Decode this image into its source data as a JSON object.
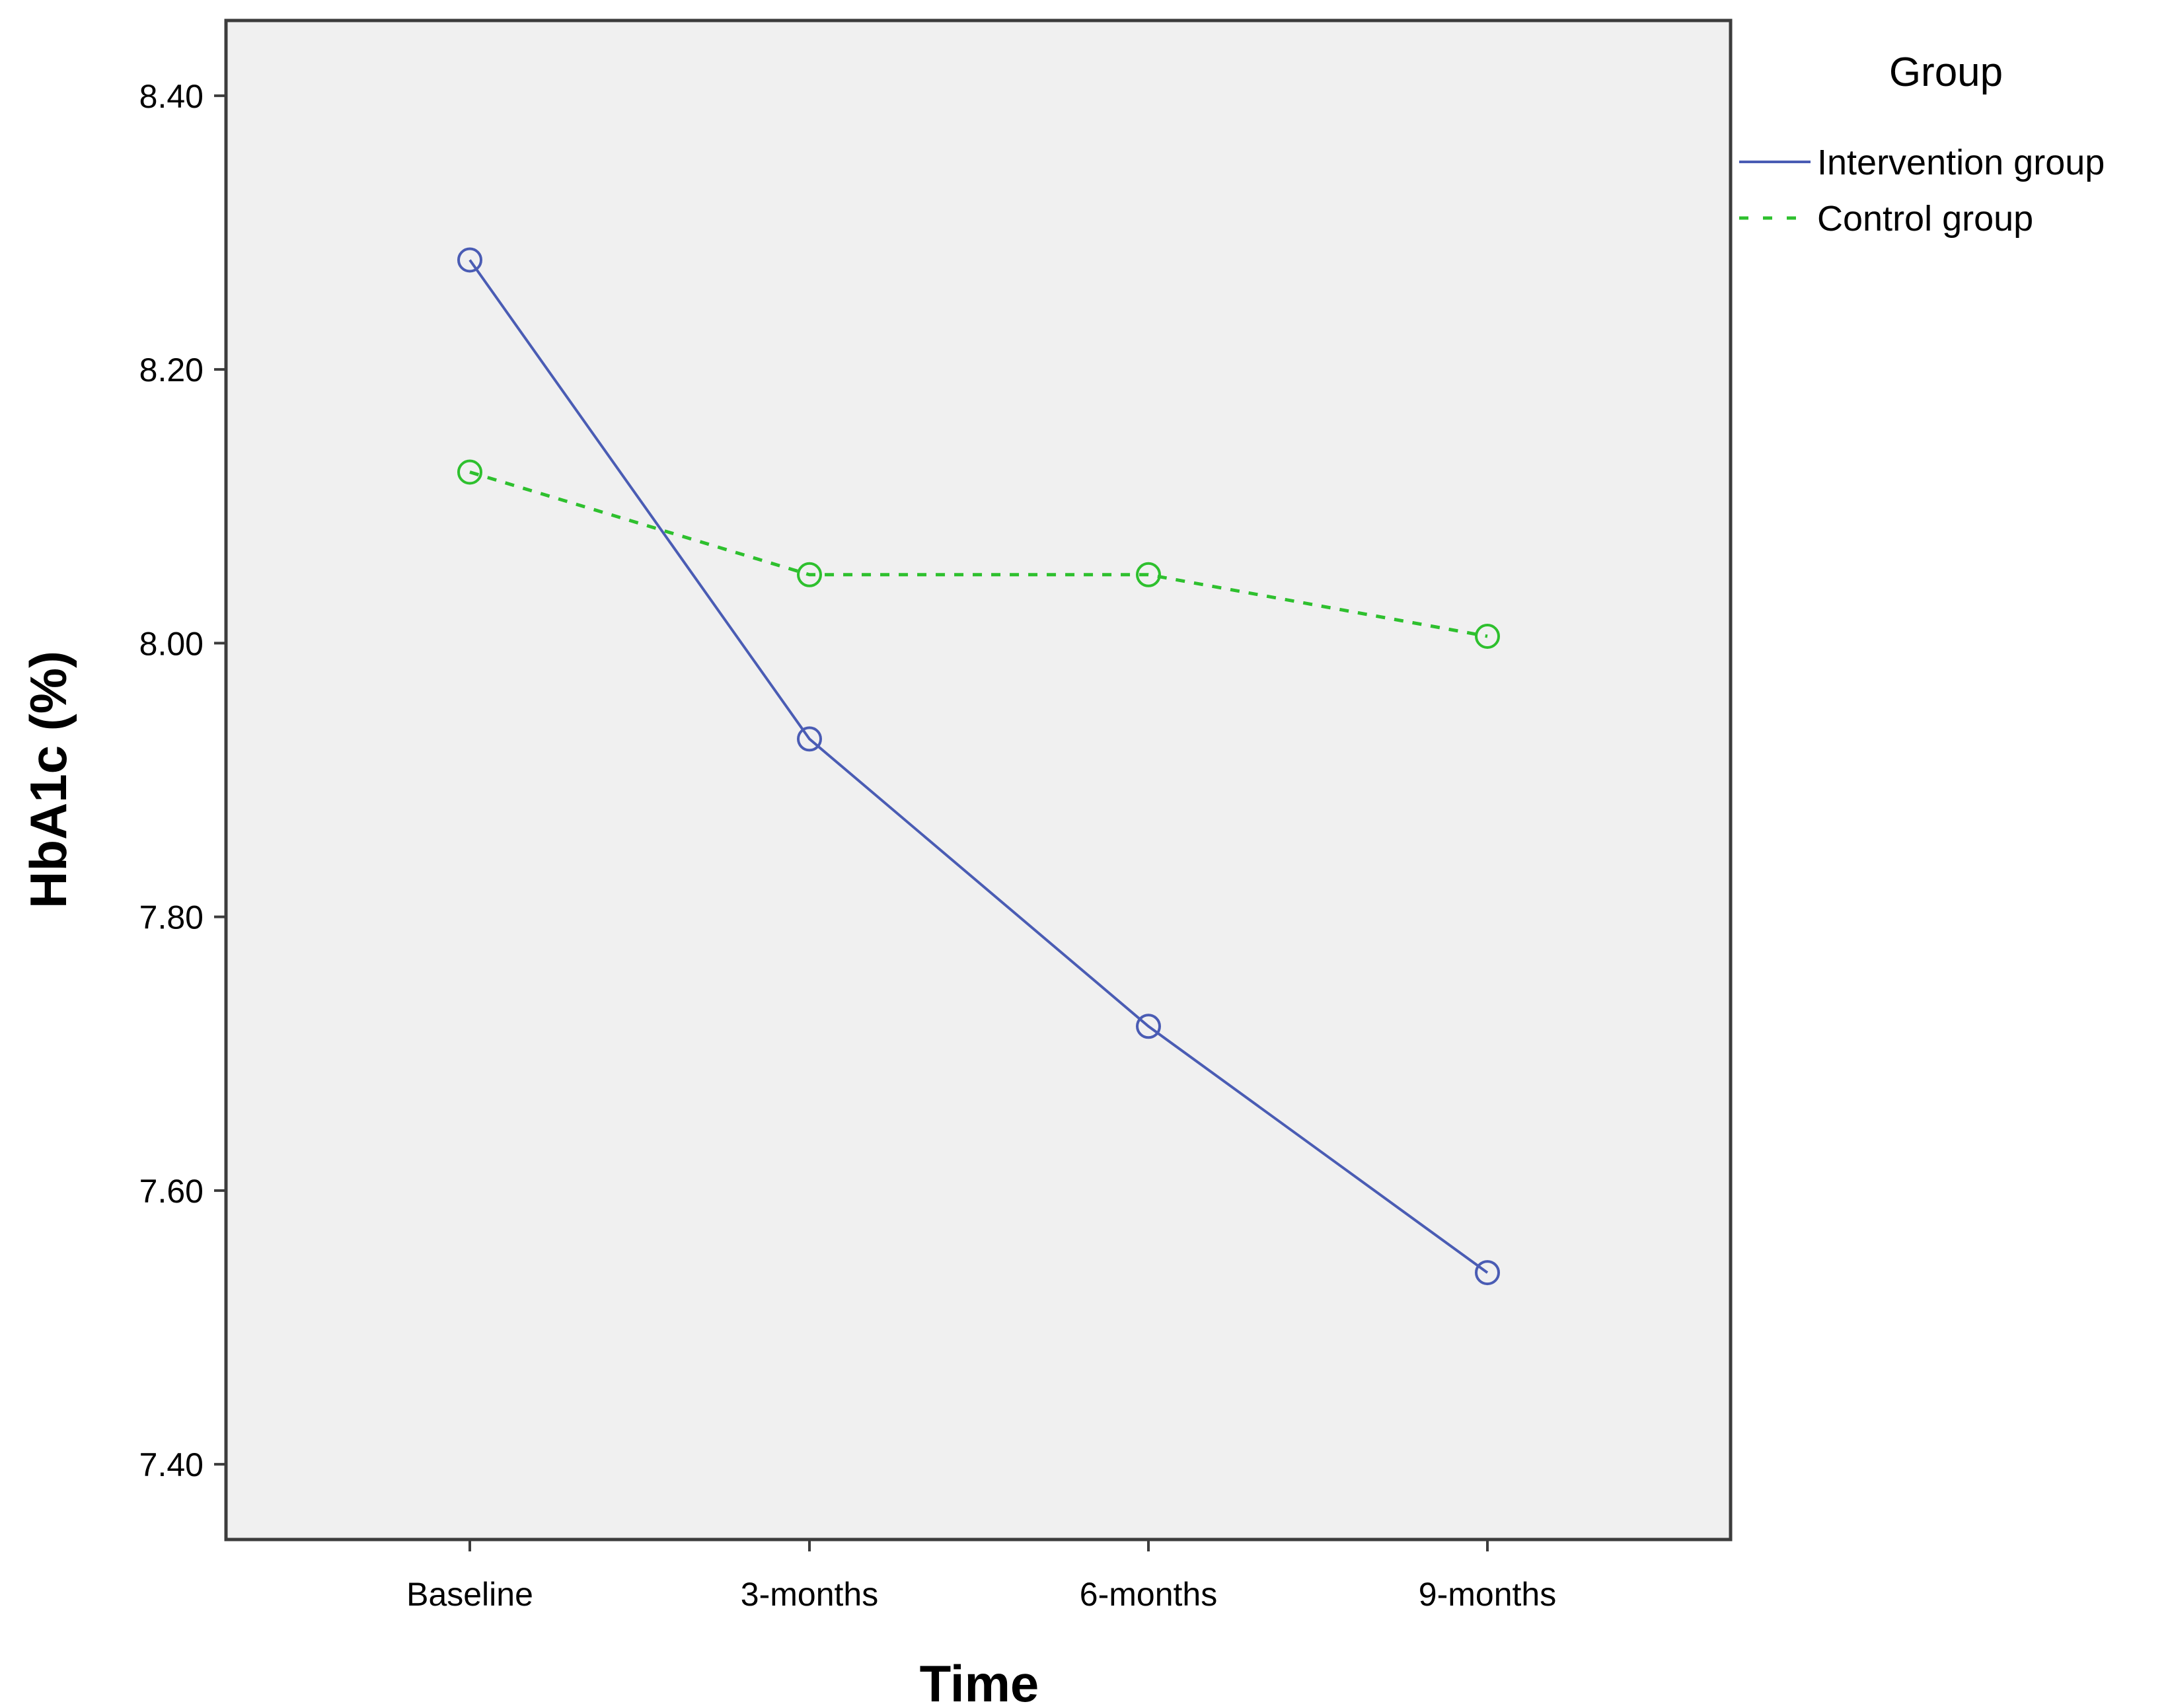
{
  "chart_data": {
    "type": "line",
    "xlabel": "Time",
    "ylabel": "HbA1c (%)",
    "categories": [
      "Baseline",
      "3-months",
      "6-months",
      "9-months"
    ],
    "ylim": [
      7.345,
      8.455
    ],
    "yticks": [
      "7.40",
      "7.60",
      "7.80",
      "8.00",
      "8.20",
      "8.40"
    ],
    "grid": false,
    "legend": {
      "title": "Group",
      "placement": "right"
    },
    "series": [
      {
        "name": "Intervention group",
        "values": [
          8.28,
          7.93,
          7.72,
          7.54
        ],
        "color": "#4a5cb4",
        "style": "solid"
      },
      {
        "name": "Control group",
        "values": [
          8.125,
          8.05,
          8.05,
          8.005
        ],
        "color": "#2ec02e",
        "style": "dashed"
      }
    ]
  },
  "colors": {
    "plot_background": "#f0f0f0",
    "frame": "#3c3c3c"
  }
}
